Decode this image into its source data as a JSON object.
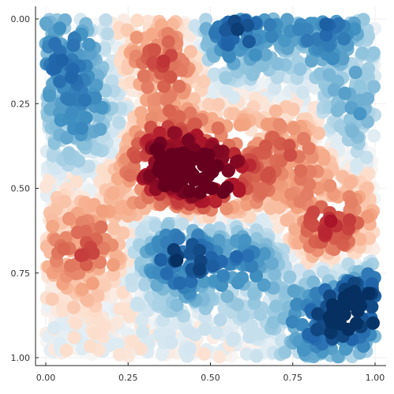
{
  "chart_data": {
    "type": "scatter",
    "title": "",
    "xlabel": "",
    "ylabel": "",
    "xlim": [
      0,
      1
    ],
    "ylim": [
      0,
      1
    ],
    "y_axis_inverted": true,
    "grid": true,
    "legend": "none",
    "x_ticks": [
      "0.00",
      "0.25",
      "0.50",
      "0.75",
      "1.00"
    ],
    "y_ticks": [
      "0.00",
      "0.25",
      "0.50",
      "0.75",
      "1.00"
    ],
    "colormap": "RdBu (red = high, blue = low)",
    "colormap_stops": [
      "#67001f",
      "#b2182b",
      "#d6604d",
      "#f4a582",
      "#fddbc7",
      "#f7f7f7",
      "#d1e5f0",
      "#92c5de",
      "#4393c3",
      "#2166ac",
      "#053061"
    ],
    "point_count_estimate": 3000,
    "value_field_centers": [
      {
        "x": 0.37,
        "y": 0.43,
        "value": 1.0
      },
      {
        "x": 0.53,
        "y": 0.48,
        "value": 0.85
      },
      {
        "x": 0.87,
        "y": 0.64,
        "value": 0.75
      },
      {
        "x": 0.36,
        "y": 0.12,
        "value": 0.6
      },
      {
        "x": 0.12,
        "y": 0.68,
        "value": 0.55
      },
      {
        "x": 0.75,
        "y": 0.38,
        "value": 0.45
      },
      {
        "x": 0.96,
        "y": 0.83,
        "value": -1.0
      },
      {
        "x": 0.41,
        "y": 0.7,
        "value": -0.85
      },
      {
        "x": 0.57,
        "y": 0.04,
        "value": -0.8
      },
      {
        "x": 0.05,
        "y": 0.1,
        "value": -0.65
      },
      {
        "x": 0.85,
        "y": 0.02,
        "value": -0.65
      },
      {
        "x": 0.12,
        "y": 0.3,
        "value": -0.5
      },
      {
        "x": 0.62,
        "y": 0.7,
        "value": -0.55
      },
      {
        "x": 0.82,
        "y": 0.9,
        "value": -0.55
      },
      {
        "x": 0.95,
        "y": 0.27,
        "value": -0.45
      }
    ]
  }
}
